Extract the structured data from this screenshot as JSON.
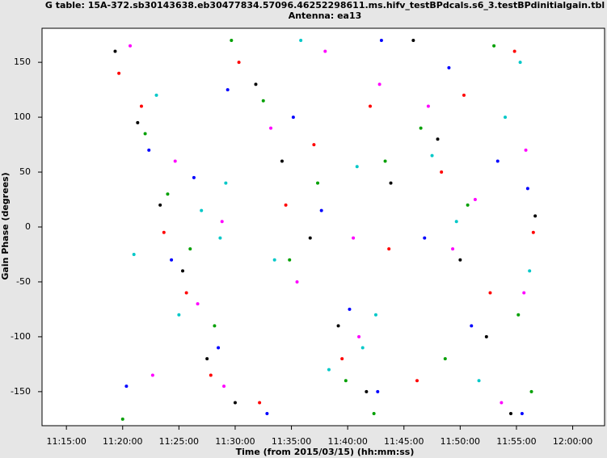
{
  "chart_data": {
    "type": "scatter",
    "title": "G table: 15A-372.sb30143638.eb30477834.57096.46252298611.ms.hifv_testBPdcals.s6_3.testBPdinitialgain.tbl",
    "subtitle": "Antenna: ea13",
    "x_label": "Time (from 2015/03/15) (hh:mm:ss)",
    "y_label": "Gain Phase (degrees)",
    "xlim": [
      40370,
      43370
    ],
    "ylim": [
      -181,
      181
    ],
    "xticks": [
      {
        "value": 40500,
        "label": "11:15:00"
      },
      {
        "value": 40800,
        "label": "11:20:00"
      },
      {
        "value": 41100,
        "label": "11:25:00"
      },
      {
        "value": 41400,
        "label": "11:30:00"
      },
      {
        "value": 41700,
        "label": "11:35:00"
      },
      {
        "value": 42000,
        "label": "11:40:00"
      },
      {
        "value": 42300,
        "label": "11:45:00"
      },
      {
        "value": 42600,
        "label": "11:50:00"
      },
      {
        "value": 42900,
        "label": "11:55:00"
      },
      {
        "value": 43200,
        "label": "12:00:00"
      }
    ],
    "yticks": [
      -150,
      -100,
      -50,
      0,
      50,
      100,
      150
    ],
    "grid": false,
    "series": [
      {
        "color": "#000000",
        "x": [
          40760,
          40880,
          41000,
          41120,
          41250,
          41400,
          41510,
          41650,
          41800,
          41950,
          42100,
          42230,
          42350,
          42480,
          42600,
          42740,
          42870,
          43000
        ],
        "values": [
          160,
          95,
          20,
          -40,
          -120,
          -160,
          130,
          60,
          -10,
          -90,
          -150,
          40,
          170,
          80,
          -30,
          -100,
          -170,
          10
        ]
      },
      {
        "color": "#ff0000",
        "x": [
          40780,
          40900,
          41020,
          41140,
          41270,
          41420,
          41530,
          41670,
          41820,
          41970,
          42120,
          42220,
          42370,
          42500,
          42620,
          42760,
          42890,
          42990
        ],
        "values": [
          140,
          110,
          -5,
          -60,
          -135,
          150,
          -160,
          20,
          75,
          -120,
          110,
          -20,
          -140,
          50,
          120,
          -60,
          160,
          -5
        ]
      },
      {
        "color": "#00a000",
        "x": [
          40800,
          40920,
          41040,
          41160,
          41290,
          41380,
          41550,
          41690,
          41840,
          41990,
          42140,
          42200,
          42390,
          42520,
          42640,
          42780,
          42910,
          42980
        ],
        "values": [
          -175,
          85,
          30,
          -20,
          -90,
          170,
          115,
          -30,
          40,
          -140,
          -170,
          60,
          90,
          -120,
          20,
          165,
          -80,
          -150
        ]
      },
      {
        "color": "#0000ff",
        "x": [
          40820,
          40940,
          41060,
          41180,
          41310,
          41360,
          41570,
          41710,
          41860,
          42010,
          42160,
          42180,
          42410,
          42540,
          42660,
          42800,
          42930,
          42960
        ],
        "values": [
          -145,
          70,
          -30,
          45,
          -110,
          125,
          -170,
          100,
          15,
          -75,
          -150,
          170,
          -10,
          145,
          -90,
          60,
          -170,
          35
        ]
      },
      {
        "color": "#ff00ff",
        "x": [
          40840,
          40960,
          41080,
          41200,
          41330,
          41340,
          41590,
          41730,
          41880,
          42030,
          42060,
          42170,
          42430,
          42560,
          42680,
          42820,
          42950,
          42940
        ],
        "values": [
          165,
          -135,
          60,
          -70,
          5,
          -145,
          90,
          -50,
          160,
          -10,
          -100,
          130,
          110,
          -20,
          25,
          -160,
          70,
          -60
        ]
      },
      {
        "color": "#00c8c8",
        "x": [
          40860,
          40980,
          41100,
          41220,
          41350,
          41320,
          41610,
          41750,
          41900,
          42050,
          42080,
          42150,
          42450,
          42580,
          42700,
          42840,
          42970,
          42920
        ],
        "values": [
          -25,
          120,
          -80,
          15,
          40,
          -10,
          -30,
          170,
          -130,
          55,
          -110,
          -80,
          65,
          5,
          -140,
          100,
          -40,
          150
        ]
      }
    ]
  }
}
